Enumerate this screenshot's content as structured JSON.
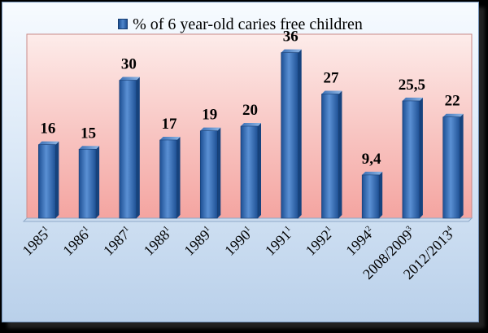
{
  "chart_data": {
    "type": "bar",
    "categories": [
      "1985",
      "1986",
      "1987",
      "1988",
      "1989",
      "1990",
      "1991",
      "1992",
      "1994",
      "2008/2009",
      "2012/2013"
    ],
    "category_superscripts": [
      "1",
      "1",
      "1",
      "1",
      "1",
      "1",
      "1",
      "1",
      "2",
      "3",
      "4"
    ],
    "series": [
      {
        "name": "% of 6 year-old caries free children",
        "values": [
          16,
          15,
          30,
          17,
          19,
          20,
          36,
          27,
          9.4,
          25.5,
          22
        ],
        "value_labels": [
          "16",
          "15",
          "30",
          "17",
          "19",
          "20",
          "36",
          "27",
          "9,4",
          "25,5",
          "22"
        ]
      }
    ],
    "ylim": [
      0,
      40
    ],
    "legend_position": "top",
    "grid": false,
    "colors": {
      "bar": "#3c72b8",
      "bar_dark": "#1d4f93",
      "plot_background_top": "#fdecea",
      "plot_background_bottom": "#f4a4a0",
      "frame_background": "#dce9f7"
    }
  }
}
